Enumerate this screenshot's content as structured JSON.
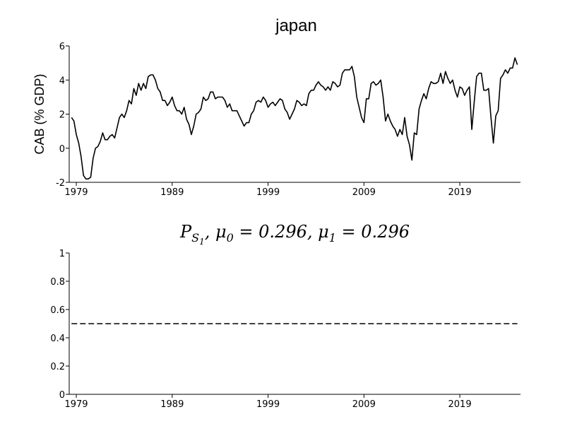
{
  "chart_data": [
    {
      "type": "line",
      "title": "japan",
      "ylabel": "CAB (% GDP)",
      "color": "#000000",
      "linestyle": "solid",
      "x": [
        1978.5,
        1978.75,
        1979,
        1979.25,
        1979.5,
        1979.75,
        1980,
        1980.25,
        1980.5,
        1980.75,
        1981,
        1981.25,
        1981.5,
        1981.75,
        1982,
        1982.25,
        1982.5,
        1982.75,
        1983,
        1983.25,
        1983.5,
        1983.75,
        1984,
        1984.25,
        1984.5,
        1984.75,
        1985,
        1985.25,
        1985.5,
        1985.75,
        1986,
        1986.25,
        1986.5,
        1986.75,
        1987,
        1987.25,
        1987.5,
        1987.75,
        1988,
        1988.25,
        1988.5,
        1988.75,
        1989,
        1989.25,
        1989.5,
        1989.75,
        1990,
        1990.25,
        1990.5,
        1990.75,
        1991,
        1991.25,
        1991.5,
        1991.75,
        1992,
        1992.25,
        1992.5,
        1992.75,
        1993,
        1993.25,
        1993.5,
        1993.75,
        1994,
        1994.25,
        1994.5,
        1994.75,
        1995,
        1995.25,
        1995.5,
        1995.75,
        1996,
        1996.25,
        1996.5,
        1996.75,
        1997,
        1997.25,
        1997.5,
        1997.75,
        1998,
        1998.25,
        1998.5,
        1998.75,
        1999,
        1999.25,
        1999.5,
        1999.75,
        2000,
        2000.25,
        2000.5,
        2000.75,
        2001,
        2001.25,
        2001.5,
        2001.75,
        2002,
        2002.25,
        2002.5,
        2002.75,
        2003,
        2003.25,
        2003.5,
        2003.75,
        2004,
        2004.25,
        2004.5,
        2004.75,
        2005,
        2005.25,
        2005.5,
        2005.75,
        2006,
        2006.25,
        2006.5,
        2006.75,
        2007,
        2007.25,
        2007.5,
        2007.75,
        2008,
        2008.25,
        2008.5,
        2008.75,
        2009,
        2009.25,
        2009.5,
        2009.75,
        2010,
        2010.25,
        2010.5,
        2010.75,
        2011,
        2011.25,
        2011.5,
        2011.75,
        2012,
        2012.25,
        2012.5,
        2012.75,
        2013,
        2013.25,
        2013.5,
        2013.75,
        2014,
        2014.25,
        2014.5,
        2014.75,
        2015,
        2015.25,
        2015.5,
        2015.75,
        2016,
        2016.25,
        2016.5,
        2016.75,
        2017,
        2017.25,
        2017.5,
        2017.75,
        2018,
        2018.25,
        2018.5,
        2018.75,
        2019,
        2019.25,
        2019.5,
        2019.75,
        2020,
        2020.25,
        2020.5,
        2020.75,
        2021,
        2021.25,
        2021.5,
        2021.75,
        2022,
        2022.25,
        2022.5,
        2022.75,
        2023,
        2023.25,
        2023.5,
        2023.75,
        2024,
        2024.25,
        2024.5,
        2024.75,
        2025
      ],
      "values": [
        1.8,
        1.6,
        0.8,
        0.3,
        -0.5,
        -1.6,
        -1.8,
        -1.8,
        -1.7,
        -0.6,
        0.0,
        0.1,
        0.4,
        0.9,
        0.5,
        0.5,
        0.7,
        0.8,
        0.6,
        1.2,
        1.8,
        2.0,
        1.8,
        2.2,
        2.8,
        2.6,
        3.5,
        3.1,
        3.8,
        3.4,
        3.8,
        3.5,
        4.2,
        4.3,
        4.3,
        4.0,
        3.5,
        3.3,
        2.8,
        2.8,
        2.5,
        2.7,
        3.0,
        2.5,
        2.2,
        2.2,
        2.0,
        2.4,
        1.7,
        1.4,
        0.8,
        1.3,
        2.0,
        2.1,
        2.3,
        3.0,
        2.8,
        2.9,
        3.3,
        3.3,
        2.9,
        3.0,
        3.0,
        3.0,
        2.8,
        2.4,
        2.6,
        2.2,
        2.2,
        2.2,
        1.9,
        1.6,
        1.3,
        1.5,
        1.5,
        2.0,
        2.2,
        2.7,
        2.8,
        2.7,
        3.0,
        2.8,
        2.4,
        2.6,
        2.7,
        2.5,
        2.7,
        2.9,
        2.8,
        2.3,
        2.1,
        1.7,
        2.0,
        2.3,
        2.8,
        2.7,
        2.5,
        2.6,
        2.5,
        3.2,
        3.4,
        3.4,
        3.7,
        3.9,
        3.7,
        3.6,
        3.4,
        3.6,
        3.4,
        3.9,
        3.8,
        3.6,
        3.7,
        4.4,
        4.6,
        4.6,
        4.6,
        4.8,
        4.2,
        3.0,
        2.4,
        1.8,
        1.5,
        2.9,
        2.9,
        3.8,
        3.9,
        3.7,
        3.8,
        4.0,
        3.0,
        1.6,
        2.0,
        1.6,
        1.3,
        1.1,
        0.7,
        1.1,
        0.8,
        1.8,
        0.7,
        0.2,
        -0.7,
        0.9,
        0.8,
        2.3,
        2.8,
        3.2,
        2.9,
        3.5,
        3.9,
        3.8,
        3.8,
        3.9,
        4.4,
        3.8,
        4.5,
        4.1,
        3.8,
        4.0,
        3.4,
        3.0,
        3.6,
        3.5,
        3.1,
        3.4,
        3.6,
        1.1,
        2.7,
        4.2,
        4.4,
        4.4,
        3.4,
        3.4,
        3.5,
        1.8,
        0.3,
        1.9,
        2.2,
        4.1,
        4.3,
        4.6,
        4.4,
        4.7,
        4.7,
        5.3,
        4.9
      ],
      "xlim": [
        1978.26,
        2025.33
      ],
      "xticks": [
        1979,
        1989,
        1999,
        2009,
        2019
      ],
      "ylim": [
        -2,
        6
      ],
      "yticks": [
        -2,
        0,
        2,
        4,
        6
      ]
    },
    {
      "type": "line",
      "title": [
        {
          "text": "P",
          "level": 0
        },
        {
          "text": "S",
          "level": 1
        },
        {
          "text": "1",
          "level": 2
        },
        {
          "text": ", μ",
          "level": 0
        },
        {
          "text": "0",
          "level": 1
        },
        {
          "text": " = 0.296, μ",
          "level": 0
        },
        {
          "text": "1",
          "level": 1
        },
        {
          "text": " = 0.296",
          "level": 0
        }
      ],
      "color": "#000000",
      "linestyle": "dashed",
      "x": [
        1978.5,
        2025.0
      ],
      "values": [
        0.5,
        0.5
      ],
      "xlim": [
        1978.26,
        2025.33
      ],
      "xticks": [
        1979,
        1989,
        1999,
        2009,
        2019
      ],
      "ylim": [
        0,
        1
      ],
      "yticks": [
        0,
        0.2,
        0.4,
        0.6,
        0.8,
        1
      ]
    }
  ]
}
